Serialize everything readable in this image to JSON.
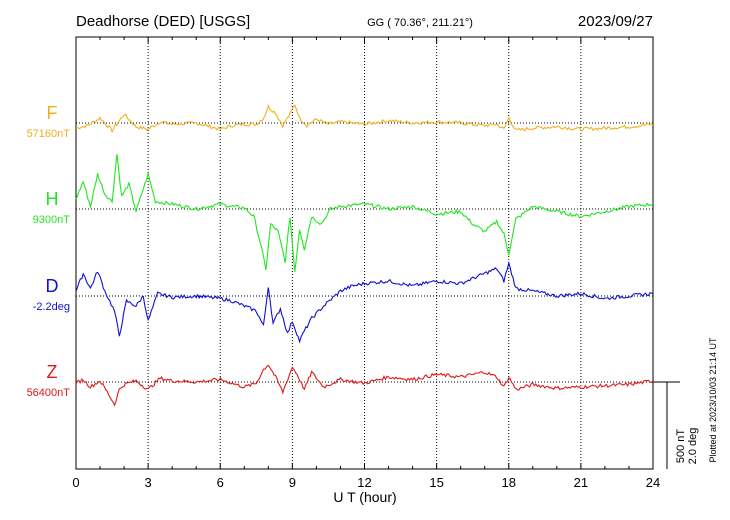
{
  "chart_data": {
    "type": "line",
    "title_left": "Deadhorse (DED)  [USGS]",
    "title_center": "GG ( 70.36°, 211.21°)",
    "date": "2023/09/27",
    "xlabel": "U T (hour)",
    "xlim": [
      0,
      24
    ],
    "x_ticks": [
      "0",
      "3",
      "6",
      "9",
      "12",
      "15",
      "18",
      "21",
      "24"
    ],
    "grid": true,
    "scale_bar_labels": [
      "500 nT",
      "2.0 deg"
    ],
    "footnote": "Plotted at 2023/10/03 21:14 UT",
    "series": [
      {
        "name": "F",
        "baseline_label": "57160nT",
        "color": "#f0b020",
        "x": [
          0,
          0.5,
          1,
          1.5,
          2,
          2.5,
          3,
          3.5,
          4,
          5,
          6,
          6.5,
          7,
          7.5,
          7.8,
          8,
          8.3,
          8.6,
          8.9,
          9.1,
          9.3,
          9.6,
          10,
          10.5,
          11,
          12,
          13,
          14,
          15,
          16,
          17,
          17.5,
          17.8,
          18,
          18.3,
          19,
          20,
          21,
          22,
          23,
          24
        ],
        "values": [
          -20,
          -10,
          20,
          -30,
          35,
          -15,
          -25,
          5,
          -5,
          0,
          -25,
          -10,
          -5,
          -5,
          20,
          65,
          40,
          -10,
          35,
          75,
          20,
          -10,
          15,
          -5,
          5,
          -5,
          10,
          0,
          5,
          0,
          -10,
          -5,
          -25,
          20,
          -30,
          -20,
          -15,
          -25,
          -20,
          -15,
          -5
        ]
      },
      {
        "name": "H",
        "baseline_label": "9300nT",
        "color": "#22e622",
        "x": [
          0,
          0.3,
          0.6,
          0.9,
          1.2,
          1.5,
          1.7,
          1.9,
          2.2,
          2.5,
          2.8,
          3,
          3.3,
          4,
          5,
          6,
          6.5,
          7,
          7.4,
          7.7,
          7.9,
          8.1,
          8.4,
          8.7,
          8.9,
          9.1,
          9.3,
          9.5,
          9.8,
          10.2,
          10.6,
          11,
          12,
          13,
          14,
          15,
          16,
          16.5,
          17,
          17.5,
          17.8,
          18,
          18.3,
          19,
          20,
          21,
          22,
          23,
          24
        ],
        "values": [
          40,
          110,
          10,
          140,
          60,
          30,
          220,
          50,
          100,
          -10,
          80,
          140,
          30,
          20,
          0,
          20,
          10,
          5,
          -30,
          -150,
          -240,
          -60,
          -90,
          -210,
          -30,
          -250,
          -80,
          -160,
          -30,
          -60,
          0,
          10,
          20,
          0,
          10,
          -20,
          -10,
          -60,
          -90,
          -50,
          -100,
          -180,
          -40,
          10,
          -10,
          -30,
          -10,
          10,
          20
        ]
      },
      {
        "name": "D",
        "baseline_label": "-2.2deg",
        "color": "#1010d0",
        "x": [
          0,
          0.3,
          0.6,
          0.9,
          1.2,
          1.6,
          1.8,
          2.1,
          2.5,
          2.8,
          3,
          3.4,
          4,
          5,
          6,
          6.5,
          7,
          7.5,
          7.8,
          8,
          8.2,
          8.5,
          8.8,
          9,
          9.3,
          9.5,
          9.8,
          10.3,
          11,
          11.5,
          12,
          13,
          14,
          15,
          16,
          16.5,
          17,
          17.5,
          17.8,
          18,
          18.3,
          19,
          20,
          21,
          22,
          23,
          24
        ],
        "values": [
          20,
          90,
          30,
          100,
          20,
          -60,
          -160,
          -20,
          -40,
          0,
          -100,
          10,
          -5,
          0,
          -10,
          -20,
          -40,
          -60,
          -120,
          40,
          -110,
          -50,
          -150,
          -100,
          -180,
          -140,
          -90,
          -40,
          20,
          40,
          50,
          60,
          40,
          60,
          50,
          70,
          90,
          110,
          60,
          130,
          30,
          20,
          0,
          10,
          -10,
          0,
          10
        ]
      },
      {
        "name": "Z",
        "baseline_label": "56400nT",
        "color": "#e01818",
        "x": [
          0,
          0.3,
          0.6,
          1,
          1.3,
          1.6,
          1.8,
          2,
          2.5,
          3,
          3.5,
          4,
          5,
          6,
          7,
          7.5,
          7.8,
          8,
          8.3,
          8.6,
          9,
          9.2,
          9.5,
          9.8,
          10.3,
          11,
          12,
          13,
          14,
          15,
          16,
          17,
          17.5,
          17.8,
          18,
          18.3,
          19,
          20,
          21,
          22,
          23,
          24
        ],
        "values": [
          -5,
          10,
          -20,
          5,
          -40,
          -90,
          -30,
          -10,
          5,
          -30,
          15,
          5,
          0,
          10,
          -20,
          -5,
          50,
          70,
          20,
          -40,
          60,
          30,
          -30,
          40,
          -20,
          10,
          -5,
          20,
          10,
          30,
          20,
          40,
          20,
          -20,
          20,
          -30,
          -10,
          -25,
          -20,
          -15,
          -10,
          5
        ]
      }
    ]
  }
}
